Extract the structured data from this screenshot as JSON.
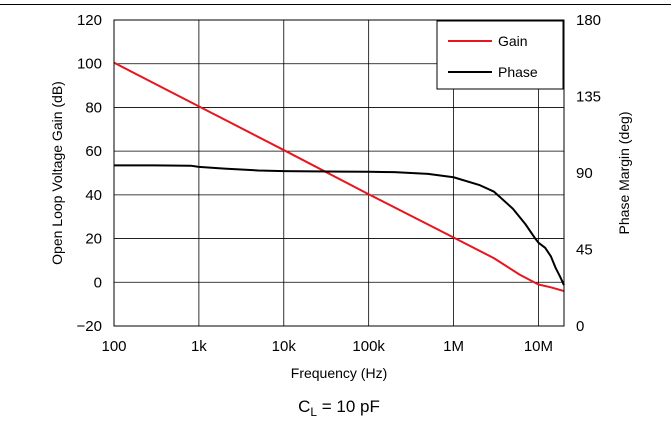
{
  "chart_data": {
    "type": "line",
    "xlabel": "Frequency (Hz)",
    "ylabel": "Open Loop Voltage Gain (dB)",
    "y2label": "Phase Margin (deg)",
    "caption": {
      "main": "C",
      "sub": "L",
      "rest": " = 10 pF"
    },
    "x_scale": "log",
    "xlim": [
      100,
      20000000
    ],
    "ylim": [
      -20,
      120
    ],
    "y2lim": [
      0,
      180
    ],
    "x_ticks": [
      100,
      1000,
      10000,
      100000,
      1000000,
      10000000
    ],
    "x_tick_labels": [
      "100",
      "1k",
      "10k",
      "100k",
      "1M",
      "10M"
    ],
    "y_ticks": [
      -20,
      0,
      20,
      40,
      60,
      80,
      100,
      120
    ],
    "y_tick_labels": [
      "−20",
      "0",
      "20",
      "40",
      "60",
      "80",
      "100",
      "120"
    ],
    "y2_ticks": [
      0,
      45,
      90,
      135,
      180
    ],
    "y2_tick_labels": [
      "0",
      "45",
      "90",
      "135",
      "180"
    ],
    "grid": true,
    "legend_position": "top-right",
    "series": [
      {
        "name": "Gain",
        "axis": "left",
        "color": "#e8141e",
        "points": [
          [
            100,
            100.5
          ],
          [
            1000,
            80.5
          ],
          [
            10000,
            60.5
          ],
          [
            100000,
            40.3
          ],
          [
            1000000,
            20.5
          ],
          [
            3000000,
            11
          ],
          [
            6000000,
            3.5
          ],
          [
            10000000,
            -1
          ],
          [
            14000000,
            -2.3
          ],
          [
            20000000,
            -4
          ]
        ]
      },
      {
        "name": "Phase",
        "axis": "right",
        "color": "#000000",
        "points": [
          [
            100,
            94.5
          ],
          [
            300,
            94.5
          ],
          [
            800,
            94.3
          ],
          [
            1000,
            93.6
          ],
          [
            2000,
            92.6
          ],
          [
            5000,
            91.5
          ],
          [
            10000,
            91.1
          ],
          [
            50000,
            90.8
          ],
          [
            100000,
            90.7
          ],
          [
            200000,
            90.5
          ],
          [
            500000,
            89.5
          ],
          [
            1000000,
            87.5
          ],
          [
            2000000,
            83
          ],
          [
            3000000,
            79
          ],
          [
            5000000,
            69
          ],
          [
            7000000,
            60
          ],
          [
            9000000,
            52
          ],
          [
            10000000,
            49
          ],
          [
            12000000,
            46
          ],
          [
            14000000,
            41
          ],
          [
            16000000,
            34
          ],
          [
            18000000,
            29
          ],
          [
            20000000,
            24
          ]
        ]
      }
    ]
  }
}
